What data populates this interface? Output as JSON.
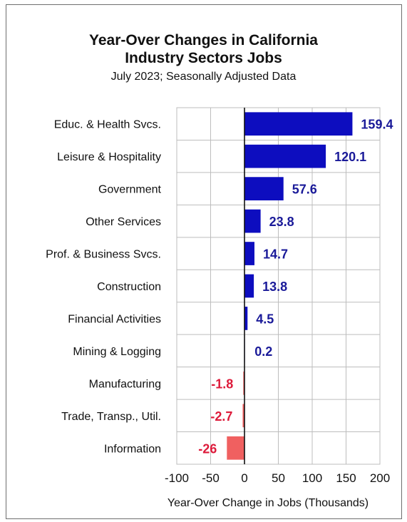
{
  "chart_data": {
    "type": "bar",
    "orientation": "horizontal",
    "title": "Year-Over Changes in California Industry Sectors Jobs",
    "title_lines": [
      "Year-Over Changes in California",
      "Industry Sectors Jobs"
    ],
    "subtitle": "July 2023;  Seasonally Adjusted Data",
    "xlabel": "Year-Over Change in Jobs (Thousands)",
    "ylabel": "",
    "xlim": [
      -100,
      200
    ],
    "xticks": [
      -100,
      -50,
      0,
      50,
      100,
      150,
      200
    ],
    "grid": true,
    "legend": "none",
    "categories": [
      "Educ. & Health Svcs.",
      "Leisure & Hospitality",
      "Government",
      "Other Services",
      "Prof. & Business Svcs.",
      "Construction",
      "Financial Activities",
      "Mining & Logging",
      "Manufacturing",
      "Trade, Transp., Util.",
      "Information"
    ],
    "values": [
      159.4,
      120.1,
      57.6,
      23.8,
      14.7,
      13.8,
      4.5,
      0.2,
      -1.8,
      -2.7,
      -26
    ],
    "value_labels": [
      "159.4",
      "120.1",
      "57.6",
      "23.8",
      "14.7",
      "13.8",
      "4.5",
      "0.2",
      "-1.8",
      "-2.7",
      "-26"
    ],
    "colors": {
      "positive_bar": "#0d0dbf",
      "positive_label": "#1a1a99",
      "negative_bar": "#f06060",
      "negative_label": "#dd1a3a",
      "grid": "#bdbdbd",
      "axis": "#111111",
      "text": "#111111"
    }
  }
}
